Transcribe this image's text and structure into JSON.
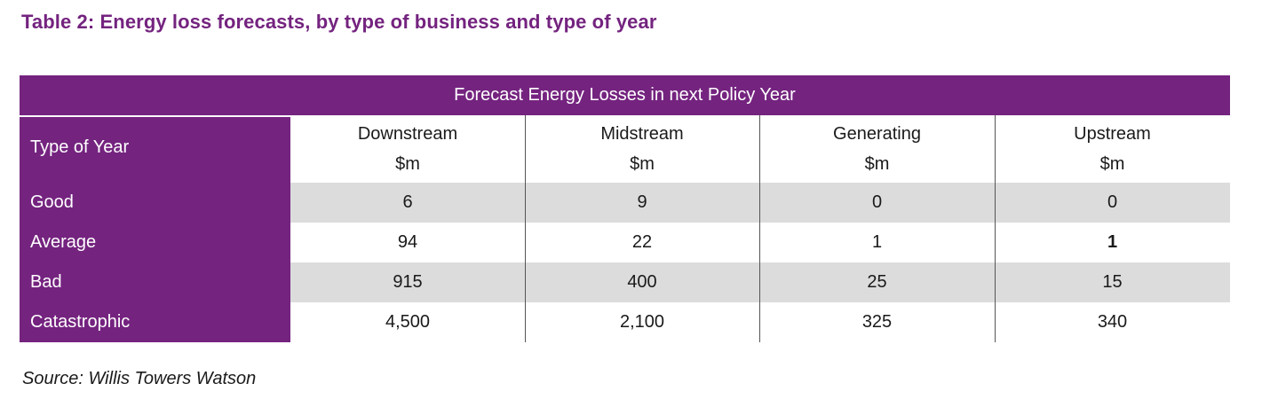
{
  "title": "Table 2: Energy loss forecasts, by type of business and type of year",
  "table": {
    "banner": "Forecast Energy Losses in next Policy Year",
    "type_header": "Type of Year",
    "columns": [
      {
        "name": "Downstream",
        "unit": "$m"
      },
      {
        "name": "Midstream",
        "unit": "$m"
      },
      {
        "name": "Generating",
        "unit": "$m"
      },
      {
        "name": "Upstream",
        "unit": "$m"
      }
    ],
    "rows": [
      {
        "label": "Good",
        "values": [
          "6",
          "9",
          "0",
          "0"
        ]
      },
      {
        "label": "Average",
        "values": [
          "94",
          "22",
          "1",
          "1"
        ]
      },
      {
        "label": "Bad",
        "values": [
          "915",
          "400",
          "25",
          "15"
        ]
      },
      {
        "label": "Catastrophic",
        "values": [
          "4,500",
          "2,100",
          "325",
          "340"
        ]
      }
    ]
  },
  "source": "Source: Willis Towers Watson",
  "colors": {
    "accent": "#74237f",
    "band": "#dcdcdc"
  }
}
